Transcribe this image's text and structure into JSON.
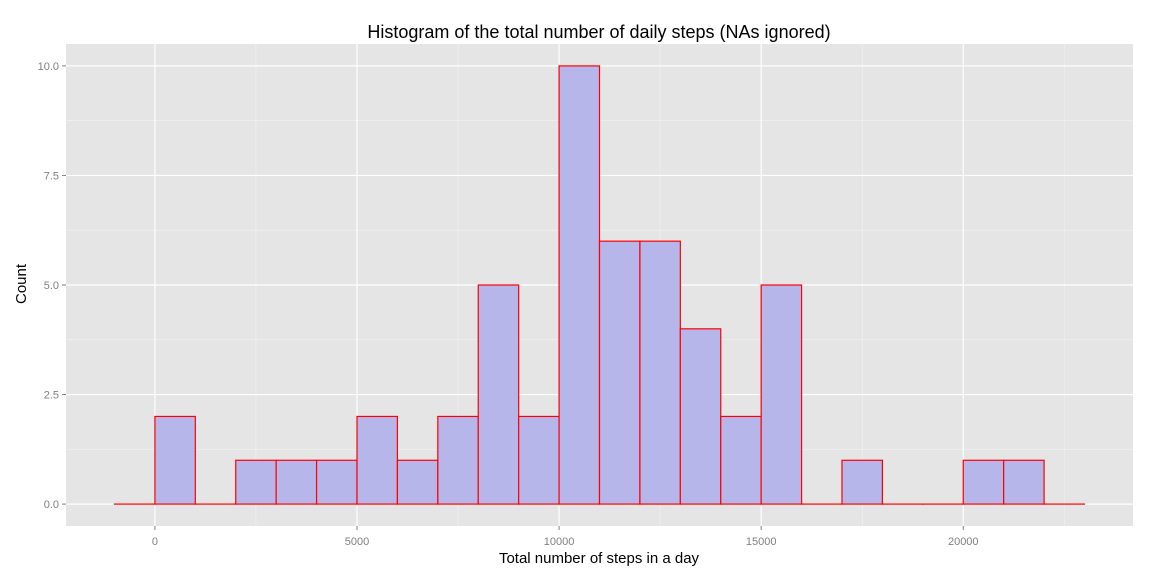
{
  "chart_data": {
    "type": "bar",
    "title": "Histogram of the total number of daily steps (NAs ignored)",
    "xlabel": "Total number of steps in a day",
    "ylabel": "Count",
    "bin_width": 1000,
    "bins": [
      {
        "x_start": -1000,
        "x_end": 0,
        "count": 0
      },
      {
        "x_start": 0,
        "x_end": 1000,
        "count": 2
      },
      {
        "x_start": 1000,
        "x_end": 2000,
        "count": 0
      },
      {
        "x_start": 2000,
        "x_end": 3000,
        "count": 1
      },
      {
        "x_start": 3000,
        "x_end": 4000,
        "count": 1
      },
      {
        "x_start": 4000,
        "x_end": 5000,
        "count": 1
      },
      {
        "x_start": 5000,
        "x_end": 6000,
        "count": 2
      },
      {
        "x_start": 6000,
        "x_end": 7000,
        "count": 1
      },
      {
        "x_start": 7000,
        "x_end": 8000,
        "count": 2
      },
      {
        "x_start": 8000,
        "x_end": 9000,
        "count": 5
      },
      {
        "x_start": 9000,
        "x_end": 10000,
        "count": 2
      },
      {
        "x_start": 10000,
        "x_end": 11000,
        "count": 10
      },
      {
        "x_start": 11000,
        "x_end": 12000,
        "count": 6
      },
      {
        "x_start": 12000,
        "x_end": 13000,
        "count": 6
      },
      {
        "x_start": 13000,
        "x_end": 14000,
        "count": 4
      },
      {
        "x_start": 14000,
        "x_end": 15000,
        "count": 2
      },
      {
        "x_start": 15000,
        "x_end": 16000,
        "count": 5
      },
      {
        "x_start": 16000,
        "x_end": 17000,
        "count": 0
      },
      {
        "x_start": 17000,
        "x_end": 18000,
        "count": 1
      },
      {
        "x_start": 18000,
        "x_end": 19000,
        "count": 0
      },
      {
        "x_start": 19000,
        "x_end": 20000,
        "count": 0
      },
      {
        "x_start": 20000,
        "x_end": 21000,
        "count": 1
      },
      {
        "x_start": 21000,
        "x_end": 22000,
        "count": 1
      },
      {
        "x_start": 22000,
        "x_end": 23000,
        "count": 0
      }
    ],
    "xlim": [
      -2200,
      24200
    ],
    "ylim": [
      -0.5,
      10.5
    ],
    "x_ticks": [
      0,
      5000,
      10000,
      15000,
      20000
    ],
    "x_tick_labels": [
      "0",
      "5000",
      "10000",
      "15000",
      "20000"
    ],
    "y_ticks": [
      0,
      2.5,
      5,
      7.5,
      10
    ],
    "y_tick_labels": [
      "0.0",
      "2.5",
      "5.0",
      "7.5",
      "10.0"
    ],
    "grid": true,
    "legend": "none",
    "colors": {
      "panel_background": "#e5e5e5",
      "grid_major": "#ffffff",
      "grid_minor": "#f2f2f2",
      "bar_fill": "#b6b6ea",
      "bar_outline": "#ff0000",
      "tick_label": "#7f7f7f",
      "text": "#000000"
    }
  }
}
